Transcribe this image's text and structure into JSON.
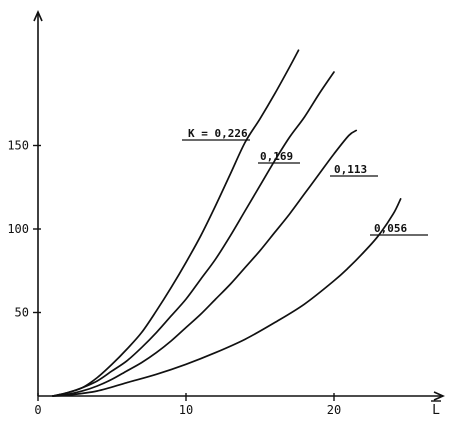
{
  "chart_data": {
    "type": "line",
    "title": "",
    "xlabel": "L",
    "ylabel": "",
    "xlim": [
      0,
      25
    ],
    "ylim": [
      0,
      200
    ],
    "grid": false,
    "x_ticks": [
      {
        "value": 0,
        "label": "0"
      },
      {
        "value": 10,
        "label": "10"
      },
      {
        "value": 20,
        "label": "20"
      }
    ],
    "y_ticks": [
      {
        "value": 50,
        "label": "50"
      },
      {
        "value": 100,
        "label": "100"
      },
      {
        "value": 150,
        "label": "150"
      }
    ],
    "series": [
      {
        "name": "K = 0,226",
        "points": [
          [
            1,
            0
          ],
          [
            2,
            2
          ],
          [
            3,
            5
          ],
          [
            4,
            11
          ],
          [
            5,
            19
          ],
          [
            6,
            28
          ],
          [
            7,
            38
          ],
          [
            8,
            51
          ],
          [
            9,
            65
          ],
          [
            10,
            80
          ],
          [
            11,
            96
          ],
          [
            12,
            114
          ],
          [
            13,
            133
          ],
          [
            14,
            152
          ],
          [
            15,
            166
          ],
          [
            16,
            181
          ],
          [
            17,
            197
          ],
          [
            17.6,
            207
          ]
        ]
      },
      {
        "name": "0,169",
        "points": [
          [
            1,
            0
          ],
          [
            2,
            2
          ],
          [
            3,
            5
          ],
          [
            4,
            9
          ],
          [
            5,
            15
          ],
          [
            6,
            21
          ],
          [
            7,
            29
          ],
          [
            8,
            38
          ],
          [
            9,
            48
          ],
          [
            10,
            58
          ],
          [
            11,
            70
          ],
          [
            12,
            82
          ],
          [
            13,
            96
          ],
          [
            14,
            111
          ],
          [
            15,
            126
          ],
          [
            16,
            141
          ],
          [
            17,
            155
          ],
          [
            18,
            167
          ],
          [
            19,
            181
          ],
          [
            20,
            194
          ]
        ]
      },
      {
        "name": "0,113",
        "points": [
          [
            1,
            0
          ],
          [
            2,
            1
          ],
          [
            3,
            3
          ],
          [
            4,
            6
          ],
          [
            5,
            10
          ],
          [
            6,
            15
          ],
          [
            7,
            20
          ],
          [
            8,
            26
          ],
          [
            9,
            33
          ],
          [
            10,
            41
          ],
          [
            11,
            49
          ],
          [
            12,
            58
          ],
          [
            13,
            67
          ],
          [
            14,
            77
          ],
          [
            15,
            87
          ],
          [
            16,
            98
          ],
          [
            17,
            109
          ],
          [
            18,
            121
          ],
          [
            19,
            133
          ],
          [
            20,
            145
          ],
          [
            21,
            156
          ],
          [
            21.5,
            159
          ]
        ]
      },
      {
        "name": "0,056",
        "points": [
          [
            1,
            0
          ],
          [
            2,
            0.5
          ],
          [
            4,
            3
          ],
          [
            6,
            8
          ],
          [
            8,
            13
          ],
          [
            10,
            19
          ],
          [
            12,
            26
          ],
          [
            14,
            34
          ],
          [
            16,
            44
          ],
          [
            18,
            55
          ],
          [
            20,
            69
          ],
          [
            21,
            77
          ],
          [
            22,
            86
          ],
          [
            23,
            96
          ],
          [
            24,
            109
          ],
          [
            24.5,
            118
          ]
        ]
      }
    ]
  }
}
